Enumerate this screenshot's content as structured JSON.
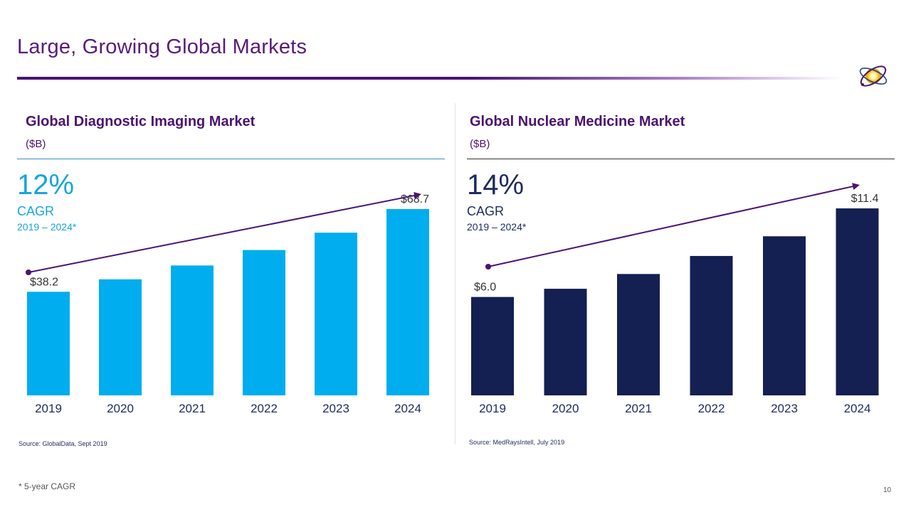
{
  "header": {
    "title": "Large, Growing Global Markets"
  },
  "colors": {
    "accent_purple": "#4b1370",
    "left_bar": "#00adee",
    "right_bar": "#141f52",
    "trend_line": "#4b1370"
  },
  "logo": {
    "icon": "atom-orbit-logo-icon"
  },
  "chart_data": [
    {
      "type": "bar",
      "title": "Global Diagnostic Imaging Market",
      "unit": "($B)",
      "categories": [
        "2019",
        "2020",
        "2021",
        "2022",
        "2023",
        "2024"
      ],
      "values": [
        38.2,
        42.8,
        47.9,
        53.6,
        60.0,
        68.7
      ],
      "data_labels": {
        "0": "$38.2",
        "5": "$68.7"
      },
      "ylim": [
        0,
        75
      ],
      "cagr": {
        "value": "12%",
        "label": "CAGR",
        "period": "2019 – 2024*"
      },
      "source": "Source: GlobalData, Sept 2019",
      "bar_color": "#00adee"
    },
    {
      "type": "bar",
      "title": "Global Nuclear Medicine Market",
      "unit": "($B)",
      "categories": [
        "2019",
        "2020",
        "2021",
        "2022",
        "2023",
        "2024"
      ],
      "values": [
        6.0,
        6.5,
        7.4,
        8.5,
        9.7,
        11.4
      ],
      "data_labels": {
        "0": "$6.0",
        "5": "$11.4"
      },
      "ylim": [
        0,
        12.4
      ],
      "cagr": {
        "value": "14%",
        "label": "CAGR",
        "period": "2019 – 2024*"
      },
      "source": "Source: MedRaysIntell, July 2019",
      "bar_color": "#141f52"
    }
  ],
  "footer": {
    "footnote": "* 5-year CAGR",
    "page_number": "10"
  }
}
